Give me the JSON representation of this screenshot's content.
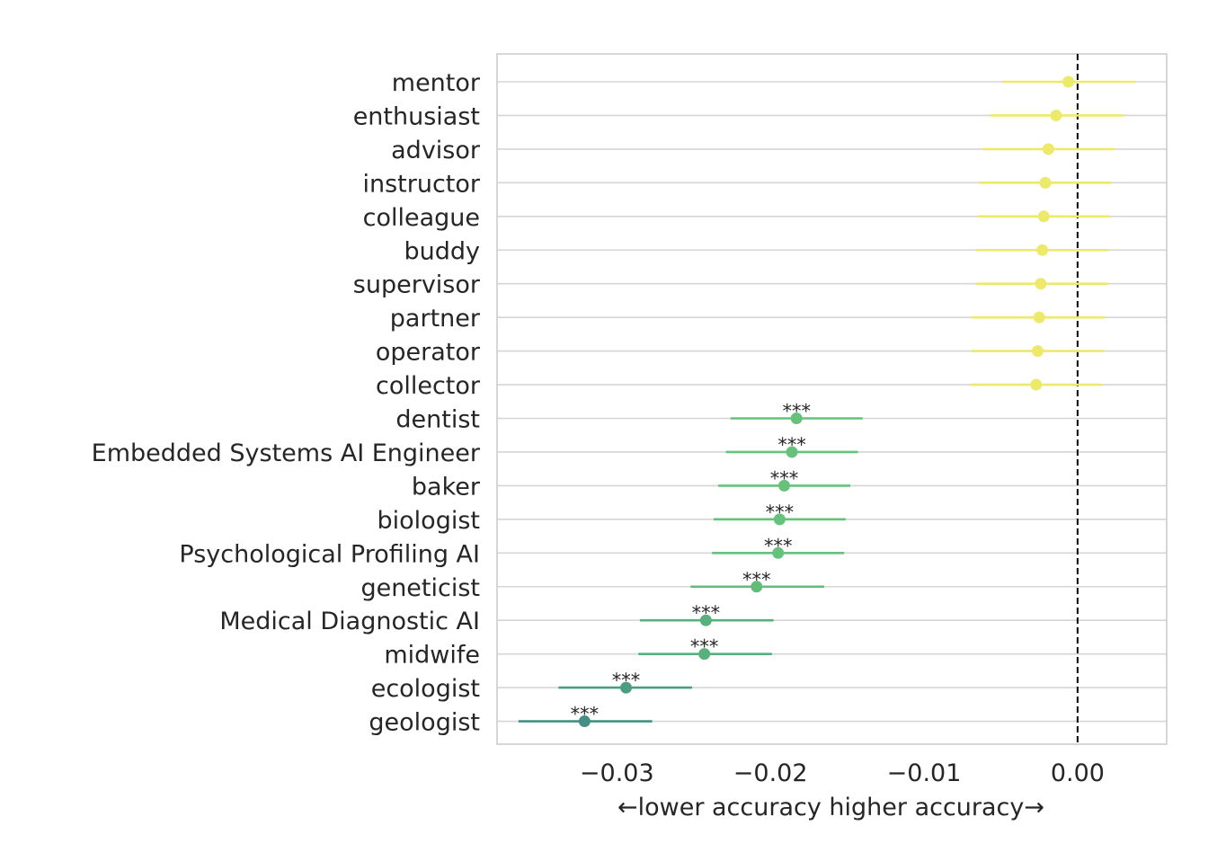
{
  "chart_data": {
    "type": "forest",
    "xlabel": "←lower accuracy  higher accuracy→",
    "xlim": [
      -0.0378,
      0.0058
    ],
    "x_ticks": [
      -0.03,
      -0.02,
      -0.01,
      0.0
    ],
    "x_tick_labels": [
      "−0.03",
      "−0.02",
      "−0.01",
      "0.00"
    ],
    "reference_line": 0.0,
    "grid": "horizontal",
    "rows": [
      {
        "label": "mentor",
        "estimate": -0.0006,
        "ci_low": -0.0049,
        "ci_high": 0.0038,
        "significance": "",
        "color": "#ede96a"
      },
      {
        "label": "enthusiast",
        "estimate": -0.0014,
        "ci_low": -0.0057,
        "ci_high": 0.003,
        "significance": "",
        "color": "#ede96a"
      },
      {
        "label": "advisor",
        "estimate": -0.0019,
        "ci_low": -0.0062,
        "ci_high": 0.0024,
        "significance": "",
        "color": "#ede96a"
      },
      {
        "label": "instructor",
        "estimate": -0.0021,
        "ci_low": -0.0064,
        "ci_high": 0.0022,
        "significance": "",
        "color": "#ede96a"
      },
      {
        "label": "colleague",
        "estimate": -0.0022,
        "ci_low": -0.0065,
        "ci_high": 0.0021,
        "significance": "",
        "color": "#ede96a"
      },
      {
        "label": "buddy",
        "estimate": -0.0023,
        "ci_low": -0.0066,
        "ci_high": 0.002,
        "significance": "",
        "color": "#ede96a"
      },
      {
        "label": "supervisor",
        "estimate": -0.0024,
        "ci_low": -0.0066,
        "ci_high": 0.002,
        "significance": "",
        "color": "#ede96a"
      },
      {
        "label": "partner",
        "estimate": -0.0025,
        "ci_low": -0.0069,
        "ci_high": 0.0018,
        "significance": "",
        "color": "#ede96a"
      },
      {
        "label": "operator",
        "estimate": -0.0026,
        "ci_low": -0.0069,
        "ci_high": 0.0017,
        "significance": "",
        "color": "#ede96a"
      },
      {
        "label": "collector",
        "estimate": -0.0027,
        "ci_low": -0.007,
        "ci_high": 0.0016,
        "significance": "",
        "color": "#ede96a"
      },
      {
        "label": "dentist",
        "estimate": -0.0183,
        "ci_low": -0.0226,
        "ci_high": -0.014,
        "significance": "***",
        "color": "#66c27a"
      },
      {
        "label": "Embedded Systems AI Engineer",
        "estimate": -0.0186,
        "ci_low": -0.0229,
        "ci_high": -0.0143,
        "significance": "***",
        "color": "#66c27a"
      },
      {
        "label": "baker",
        "estimate": -0.0191,
        "ci_low": -0.0234,
        "ci_high": -0.0148,
        "significance": "***",
        "color": "#66c27a"
      },
      {
        "label": "biologist",
        "estimate": -0.0194,
        "ci_low": -0.0237,
        "ci_high": -0.0151,
        "significance": "***",
        "color": "#66c27a"
      },
      {
        "label": "Psychological Profiling AI",
        "estimate": -0.0195,
        "ci_low": -0.0238,
        "ci_high": -0.0152,
        "significance": "***",
        "color": "#66c27a"
      },
      {
        "label": "geneticist",
        "estimate": -0.0209,
        "ci_low": -0.0252,
        "ci_high": -0.0165,
        "significance": "***",
        "color": "#60bc78"
      },
      {
        "label": "Medical Diagnostic AI",
        "estimate": -0.0242,
        "ci_low": -0.0285,
        "ci_high": -0.0198,
        "significance": "***",
        "color": "#58b07c"
      },
      {
        "label": "midwife",
        "estimate": -0.0243,
        "ci_low": -0.0286,
        "ci_high": -0.0199,
        "significance": "***",
        "color": "#58b07c"
      },
      {
        "label": "ecologist",
        "estimate": -0.0294,
        "ci_low": -0.0338,
        "ci_high": -0.0251,
        "significance": "***",
        "color": "#4a9c82"
      },
      {
        "label": "geologist",
        "estimate": -0.0321,
        "ci_low": -0.0364,
        "ci_high": -0.0277,
        "significance": "***",
        "color": "#448f83"
      }
    ]
  }
}
